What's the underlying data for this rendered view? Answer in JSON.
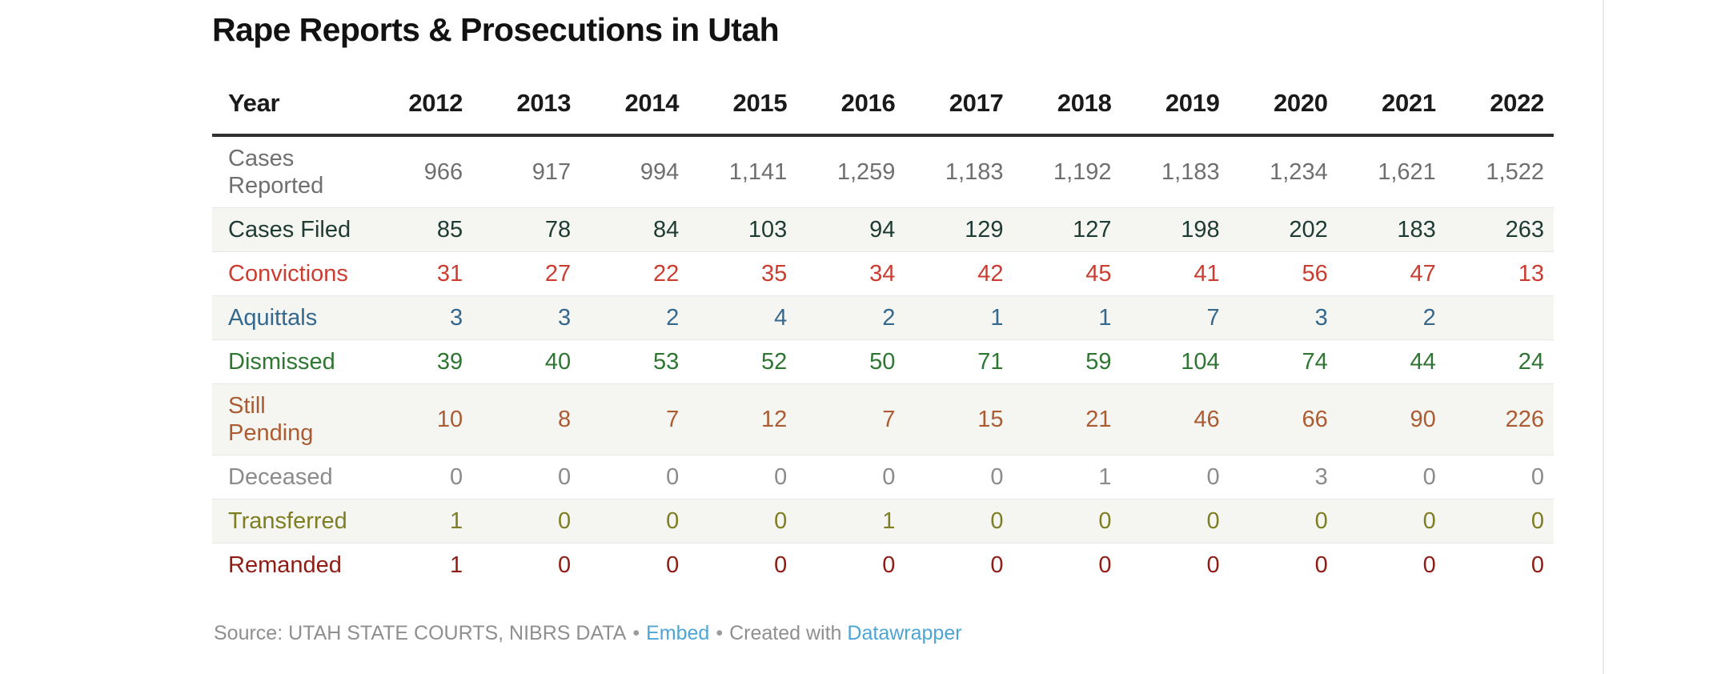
{
  "header": {
    "title": "Rape Reports & Prosecutions in Utah"
  },
  "table": {
    "year_column_label": "Year",
    "years": [
      "2012",
      "2013",
      "2014",
      "2015",
      "2016",
      "2017",
      "2018",
      "2019",
      "2020",
      "2021",
      "2022"
    ],
    "rows": [
      {
        "label": "Cases\nReported",
        "color": "#6f6f6f",
        "values": [
          "966",
          "917",
          "994",
          "1,141",
          "1,259",
          "1,183",
          "1,192",
          "1,183",
          "1,234",
          "1,621",
          "1,522"
        ]
      },
      {
        "label": "Cases Filed",
        "color": "#1e3b34",
        "values": [
          "85",
          "78",
          "84",
          "103",
          "94",
          "129",
          "127",
          "198",
          "202",
          "183",
          "263"
        ]
      },
      {
        "label": "Convictions",
        "color": "#ca3e32",
        "values": [
          "31",
          "27",
          "22",
          "35",
          "34",
          "42",
          "45",
          "41",
          "56",
          "47",
          "13"
        ]
      },
      {
        "label": "Aquittals",
        "color": "#35688d",
        "values": [
          "3",
          "3",
          "2",
          "4",
          "2",
          "1",
          "1",
          "7",
          "3",
          "2",
          ""
        ]
      },
      {
        "label": "Dismissed",
        "color": "#2e7632",
        "values": [
          "39",
          "40",
          "53",
          "52",
          "50",
          "71",
          "59",
          "104",
          "74",
          "44",
          "24"
        ]
      },
      {
        "label": "Still\nPending",
        "color": "#ac5c32",
        "values": [
          "10",
          "8",
          "7",
          "12",
          "7",
          "15",
          "21",
          "46",
          "66",
          "90",
          "226"
        ]
      },
      {
        "label": "Deceased",
        "color": "#8b8b8b",
        "values": [
          "0",
          "0",
          "0",
          "0",
          "0",
          "0",
          "1",
          "0",
          "3",
          "0",
          "0"
        ]
      },
      {
        "label": "Transferred",
        "color": "#7e7e22",
        "values": [
          "1",
          "0",
          "0",
          "0",
          "1",
          "0",
          "0",
          "0",
          "0",
          "0",
          "0"
        ]
      },
      {
        "label": "Remanded",
        "color": "#8f1d15",
        "values": [
          "1",
          "0",
          "0",
          "0",
          "0",
          "0",
          "0",
          "0",
          "0",
          "0",
          "0"
        ]
      }
    ],
    "stripe_color": "#f5f5f2",
    "header_border_color": "#303030"
  },
  "footer": {
    "source_text": "Source: UTAH STATE COURTS, NIBRS DATA",
    "separator": "•",
    "embed_label": "Embed",
    "created_with_text": "Created with",
    "datawrapper_label": "Datawrapper",
    "link_color": "#4da5d6"
  },
  "chart_data": {
    "type": "table",
    "title": "Rape Reports & Prosecutions in Utah",
    "categories": [
      2012,
      2013,
      2014,
      2015,
      2016,
      2017,
      2018,
      2019,
      2020,
      2021,
      2022
    ],
    "series": [
      {
        "name": "Cases Reported",
        "values": [
          966,
          917,
          994,
          1141,
          1259,
          1183,
          1192,
          1183,
          1234,
          1621,
          1522
        ]
      },
      {
        "name": "Cases Filed",
        "values": [
          85,
          78,
          84,
          103,
          94,
          129,
          127,
          198,
          202,
          183,
          263
        ]
      },
      {
        "name": "Convictions",
        "values": [
          31,
          27,
          22,
          35,
          34,
          42,
          45,
          41,
          56,
          47,
          13
        ]
      },
      {
        "name": "Aquittals",
        "values": [
          3,
          3,
          2,
          4,
          2,
          1,
          1,
          7,
          3,
          2,
          null
        ]
      },
      {
        "name": "Dismissed",
        "values": [
          39,
          40,
          53,
          52,
          50,
          71,
          59,
          104,
          74,
          44,
          24
        ]
      },
      {
        "name": "Still Pending",
        "values": [
          10,
          8,
          7,
          12,
          7,
          15,
          21,
          46,
          66,
          90,
          226
        ]
      },
      {
        "name": "Deceased",
        "values": [
          0,
          0,
          0,
          0,
          0,
          0,
          1,
          0,
          3,
          0,
          0
        ]
      },
      {
        "name": "Transferred",
        "values": [
          1,
          0,
          0,
          0,
          1,
          0,
          0,
          0,
          0,
          0,
          0
        ]
      },
      {
        "name": "Remanded",
        "values": [
          1,
          0,
          0,
          0,
          0,
          0,
          0,
          0,
          0,
          0,
          0
        ]
      }
    ],
    "source": "UTAH STATE COURTS, NIBRS DATA",
    "legend_position": "none",
    "grid": "row-stripes"
  }
}
